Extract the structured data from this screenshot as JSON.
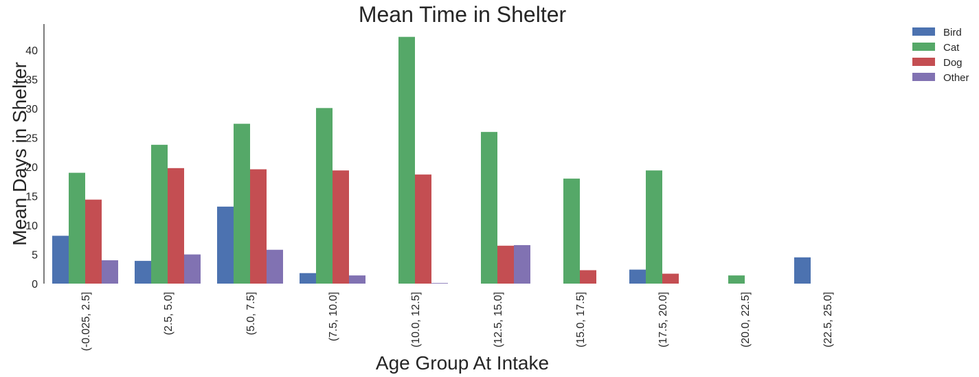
{
  "chart_data": {
    "type": "bar",
    "title": "Mean Time in Shelter",
    "xlabel": "Age Group At Intake",
    "ylabel": "Mean Days in Shelter",
    "categories": [
      "(-0.025, 2.5]",
      "(2.5, 5.0]",
      "(5.0, 7.5]",
      "(7.5, 10.0]",
      "(10.0, 12.5]",
      "(12.5, 15.0]",
      "(15.0, 17.5]",
      "(17.5, 20.0]",
      "(20.0, 22.5]",
      "(22.5, 25.0]"
    ],
    "series": [
      {
        "name": "Bird",
        "color": "#4c72b0",
        "values": [
          8.2,
          3.9,
          13.2,
          1.8,
          null,
          null,
          null,
          2.4,
          null,
          4.5
        ]
      },
      {
        "name": "Cat",
        "color": "#55a868",
        "values": [
          19.0,
          23.8,
          27.4,
          30.1,
          42.3,
          26.0,
          18.0,
          19.4,
          1.4,
          null
        ]
      },
      {
        "name": "Dog",
        "color": "#c44e52",
        "values": [
          14.4,
          19.8,
          19.6,
          19.4,
          18.7,
          6.5,
          2.3,
          1.7,
          null,
          null
        ]
      },
      {
        "name": "Other",
        "color": "#8172b2",
        "values": [
          4.0,
          5.0,
          5.8,
          1.4,
          0.1,
          6.6,
          null,
          null,
          null,
          null
        ]
      }
    ],
    "yticks": [
      0,
      5,
      10,
      15,
      20,
      25,
      30,
      35,
      40
    ],
    "ylim": [
      0,
      44.5
    ],
    "grid": false,
    "legend_position": "top-right outside"
  }
}
